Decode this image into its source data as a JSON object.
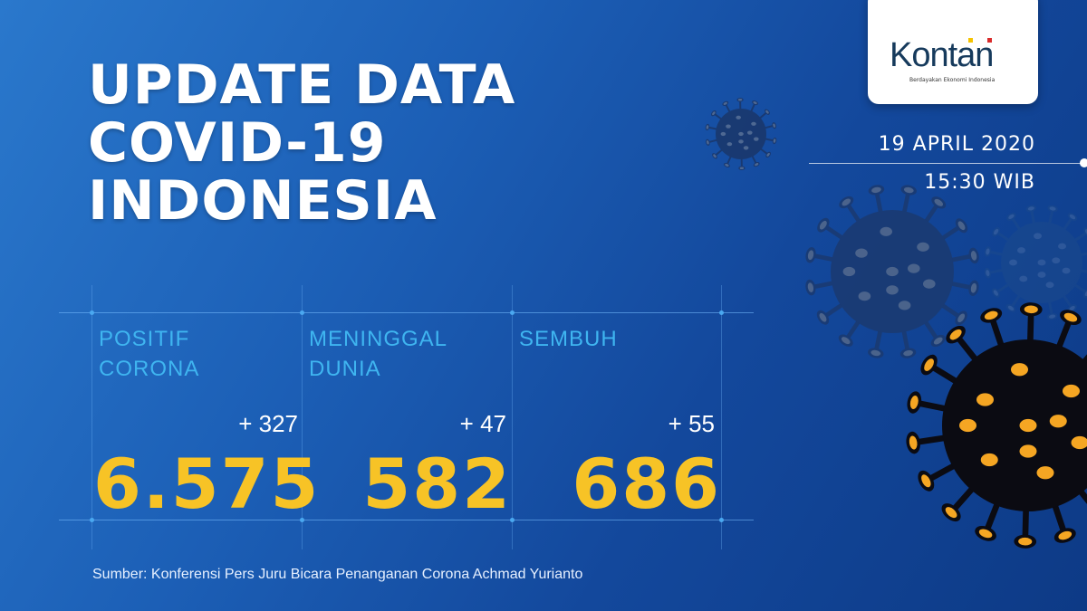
{
  "title": {
    "line1": "UPDATE DATA",
    "line2": "COVID-19",
    "line3": "INDONESIA"
  },
  "logo": {
    "name": "Kontan",
    "tagline": "Berdayakan Ekonomi Indonesia"
  },
  "date": "19 APRIL 2020",
  "time": "15:30 WIB",
  "stats": [
    {
      "label1": "POSITIF",
      "label2": "CORONA",
      "delta": "+ 327",
      "total": "6.575"
    },
    {
      "label1": "MENINGGAL",
      "label2": "DUNIA",
      "delta": "+ 47",
      "total": "582"
    },
    {
      "label1": "SEMBUH",
      "label2": "",
      "delta": "+ 55",
      "total": "686"
    }
  ],
  "source": "Sumber: Konferensi Pers Juru Bicara Penanganan Corona Achmad Yurianto",
  "colors": {
    "label": "#3fb5f0",
    "total": "#f7c326",
    "virus_spots": "#f5a623"
  }
}
